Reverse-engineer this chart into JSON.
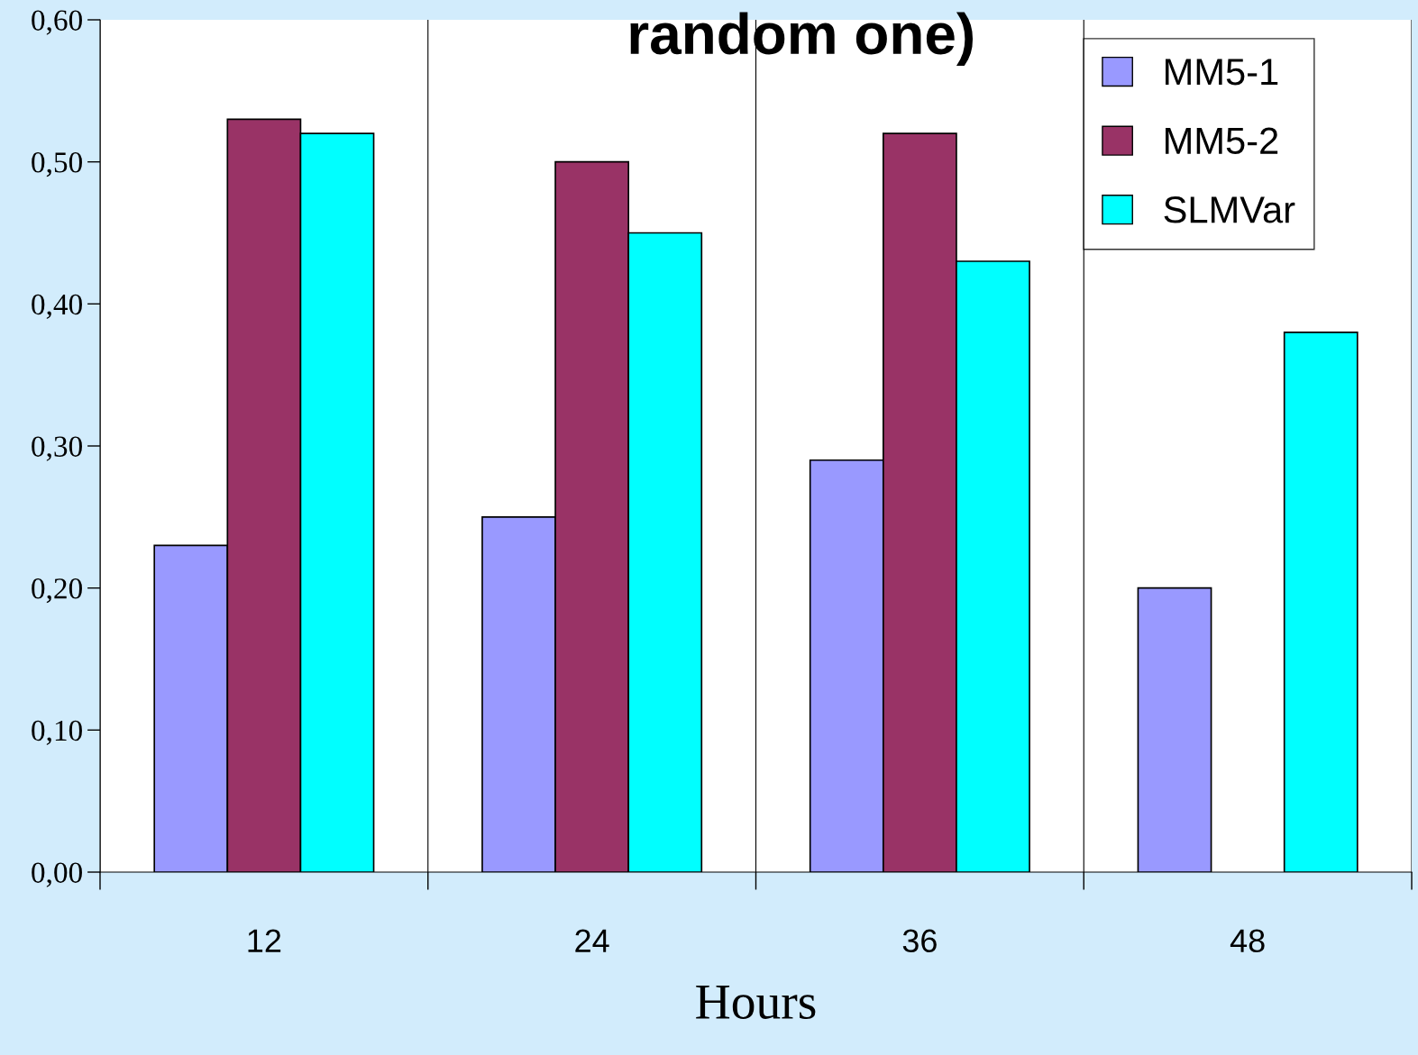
{
  "chart_data": {
    "type": "bar",
    "title": "random one)",
    "xlabel": "Hours",
    "categories": [
      "12",
      "24",
      "36",
      "48"
    ],
    "series": [
      {
        "name": "MM5-1",
        "color": "#9999ff",
        "values": [
          0.23,
          0.25,
          0.29,
          0.2
        ]
      },
      {
        "name": "MM5-2",
        "color": "#993366",
        "values": [
          0.53,
          0.5,
          0.52,
          null
        ]
      },
      {
        "name": "SLMVar",
        "color": "#00ffff",
        "values": [
          0.52,
          0.45,
          0.43,
          0.38
        ]
      }
    ],
    "ylim": [
      0,
      0.6
    ],
    "yticks": [
      {
        "value": 0,
        "label": "0,00"
      },
      {
        "value": 0.1,
        "label": "0,10"
      },
      {
        "value": 0.2,
        "label": "0,20"
      },
      {
        "value": 0.3,
        "label": "0,30"
      },
      {
        "value": 0.4,
        "label": "0,40"
      },
      {
        "value": 0.5,
        "label": "0,50"
      },
      {
        "value": 0.6,
        "label": "0,60"
      }
    ],
    "grid": "x",
    "legend": "top right"
  }
}
